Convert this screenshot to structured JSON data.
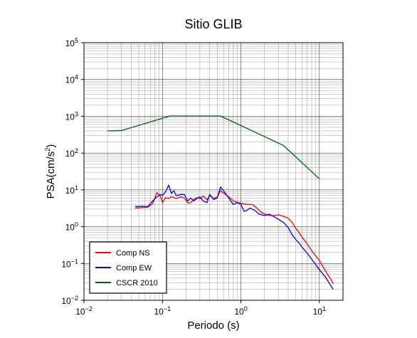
{
  "chart_data": {
    "type": "line",
    "title": "Sitio GLIB",
    "xlabel": "Periodo (s)",
    "ylabel": "PSA(cm/s²)",
    "ylabel_base": "PSA(cm/s",
    "ylabel_exp": "2",
    "ylabel_close": ")",
    "x_scale": "log",
    "y_scale": "log",
    "xlim": [
      0.01,
      20
    ],
    "ylim": [
      0.01,
      100000
    ],
    "grid": true,
    "legend_position": "bottom-left",
    "x_ticks": [
      {
        "value": 0.01,
        "base": "10",
        "exp": "−2"
      },
      {
        "value": 0.1,
        "base": "10",
        "exp": "−1"
      },
      {
        "value": 1,
        "base": "10",
        "exp": "0"
      },
      {
        "value": 10,
        "base": "10",
        "exp": "1"
      }
    ],
    "y_ticks": [
      {
        "value": 0.01,
        "base": "10",
        "exp": "−2"
      },
      {
        "value": 0.1,
        "base": "10",
        "exp": "−1"
      },
      {
        "value": 1,
        "base": "10",
        "exp": "0"
      },
      {
        "value": 10,
        "base": "10",
        "exp": "1"
      },
      {
        "value": 100,
        "base": "10",
        "exp": "2"
      },
      {
        "value": 1000,
        "base": "10",
        "exp": "3"
      },
      {
        "value": 10000,
        "base": "10",
        "exp": "4"
      },
      {
        "value": 100000,
        "base": "10",
        "exp": "5"
      }
    ],
    "series": [
      {
        "name": "Comp NS",
        "color": "#ff0000",
        "points": [
          [
            0.045,
            3.2
          ],
          [
            0.055,
            3.3
          ],
          [
            0.065,
            3.4
          ],
          [
            0.075,
            4.2
          ],
          [
            0.085,
            8.5
          ],
          [
            0.095,
            6.5
          ],
          [
            0.1,
            4.5
          ],
          [
            0.11,
            6.2
          ],
          [
            0.12,
            5.8
          ],
          [
            0.13,
            6.5
          ],
          [
            0.14,
            6.2
          ],
          [
            0.15,
            5.8
          ],
          [
            0.17,
            6.5
          ],
          [
            0.19,
            6.0
          ],
          [
            0.21,
            4.4
          ],
          [
            0.23,
            4.5
          ],
          [
            0.25,
            5.5
          ],
          [
            0.28,
            6.2
          ],
          [
            0.3,
            5.7
          ],
          [
            0.33,
            6.8
          ],
          [
            0.37,
            5.4
          ],
          [
            0.4,
            7.0
          ],
          [
            0.45,
            5.8
          ],
          [
            0.5,
            6.5
          ],
          [
            0.55,
            9.5
          ],
          [
            0.6,
            8.2
          ],
          [
            0.7,
            6.5
          ],
          [
            0.8,
            5.0
          ],
          [
            0.9,
            4.6
          ],
          [
            1.0,
            4.3
          ],
          [
            1.2,
            4.0
          ],
          [
            1.4,
            4.0
          ],
          [
            1.6,
            3.2
          ],
          [
            1.8,
            2.5
          ],
          [
            2.0,
            2.2
          ],
          [
            2.3,
            2.0
          ],
          [
            2.6,
            2.0
          ],
          [
            3.0,
            2.1
          ],
          [
            3.5,
            1.9
          ],
          [
            4.0,
            1.7
          ],
          [
            4.5,
            1.3
          ],
          [
            5.0,
            0.9
          ],
          [
            5.5,
            0.7
          ],
          [
            6.0,
            0.52
          ],
          [
            7.0,
            0.34
          ],
          [
            8.0,
            0.22
          ],
          [
            9.0,
            0.16
          ],
          [
            10.0,
            0.12
          ],
          [
            11.0,
            0.085
          ],
          [
            12.0,
            0.062
          ],
          [
            13.0,
            0.047
          ],
          [
            14.5,
            0.033
          ],
          [
            15.0,
            0.028
          ]
        ]
      },
      {
        "name": "Comp EW",
        "color": "#0000ff",
        "points": [
          [
            0.045,
            3.5
          ],
          [
            0.055,
            3.6
          ],
          [
            0.065,
            3.5
          ],
          [
            0.075,
            5.0
          ],
          [
            0.085,
            6.5
          ],
          [
            0.095,
            7.5
          ],
          [
            0.1,
            7.0
          ],
          [
            0.11,
            9.0
          ],
          [
            0.12,
            13.5
          ],
          [
            0.13,
            8.0
          ],
          [
            0.14,
            9.5
          ],
          [
            0.15,
            7.0
          ],
          [
            0.17,
            7.5
          ],
          [
            0.19,
            7.5
          ],
          [
            0.21,
            5.0
          ],
          [
            0.23,
            6.0
          ],
          [
            0.25,
            5.0
          ],
          [
            0.28,
            6.0
          ],
          [
            0.3,
            6.5
          ],
          [
            0.33,
            5.0
          ],
          [
            0.37,
            4.5
          ],
          [
            0.4,
            7.5
          ],
          [
            0.45,
            5.5
          ],
          [
            0.5,
            6.0
          ],
          [
            0.55,
            12.0
          ],
          [
            0.6,
            9.5
          ],
          [
            0.7,
            6.0
          ],
          [
            0.8,
            4.0
          ],
          [
            0.9,
            4.5
          ],
          [
            1.0,
            4.0
          ],
          [
            1.1,
            2.6
          ],
          [
            1.2,
            2.8
          ],
          [
            1.3,
            3.2
          ],
          [
            1.5,
            2.8
          ],
          [
            1.7,
            2.2
          ],
          [
            2.0,
            2.0
          ],
          [
            2.3,
            2.2
          ],
          [
            2.6,
            1.9
          ],
          [
            3.0,
            1.6
          ],
          [
            3.5,
            1.3
          ],
          [
            4.0,
            0.95
          ],
          [
            4.5,
            0.6
          ],
          [
            5.0,
            0.45
          ],
          [
            5.5,
            0.36
          ],
          [
            6.0,
            0.28
          ],
          [
            7.0,
            0.19
          ],
          [
            8.0,
            0.13
          ],
          [
            9.0,
            0.092
          ],
          [
            10.0,
            0.068
          ],
          [
            11.0,
            0.053
          ],
          [
            12.0,
            0.042
          ],
          [
            13.0,
            0.032
          ],
          [
            14.5,
            0.022
          ],
          [
            15.0,
            0.02
          ]
        ]
      },
      {
        "name": "CSCR 2010",
        "color": "#006400",
        "points": [
          [
            0.02,
            400
          ],
          [
            0.03,
            410
          ],
          [
            0.125,
            1020
          ],
          [
            0.55,
            1020
          ],
          [
            3.5,
            160
          ],
          [
            10.0,
            20
          ]
        ]
      }
    ]
  }
}
